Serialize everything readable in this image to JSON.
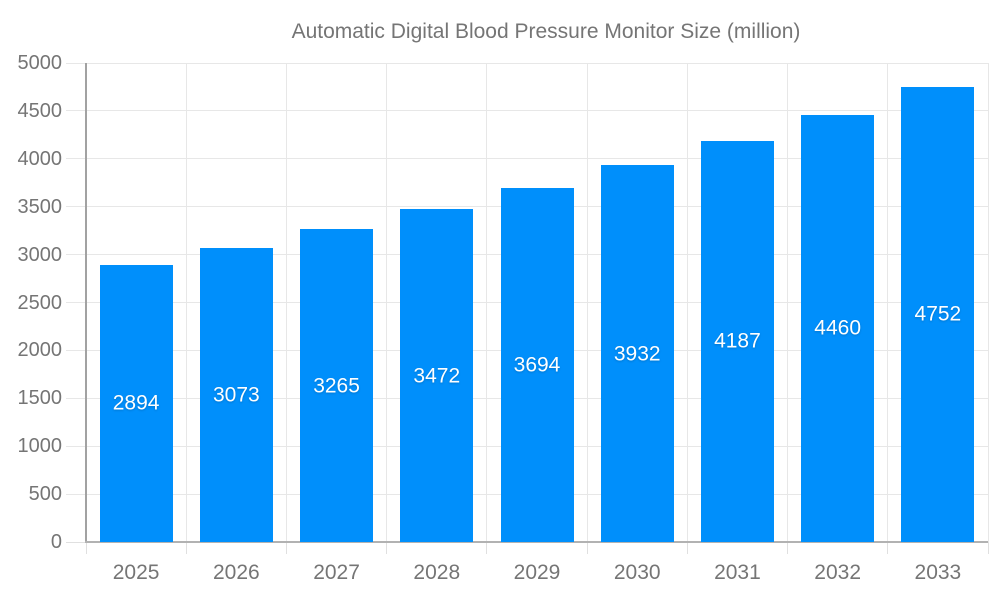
{
  "chart_data": {
    "type": "bar",
    "title": "Automatic Digital Blood Pressure Monitor Size (million)",
    "legend": {
      "label": "Automatic Digital Blood Pressure Monitor Size (million)",
      "position": "top"
    },
    "categories": [
      "2025",
      "2026",
      "2027",
      "2028",
      "2029",
      "2030",
      "2031",
      "2032",
      "2033"
    ],
    "series": [
      {
        "name": "Automatic Digital Blood Pressure Monitor Size (million)",
        "values": [
          2894,
          3073,
          3265,
          3472,
          3694,
          3932,
          4187,
          4460,
          4752
        ]
      }
    ],
    "xlabel": "",
    "ylabel": "",
    "ylim": [
      0,
      5000
    ],
    "ytick_step": 500,
    "ytick_labels": [
      "0",
      "500",
      "1000",
      "1500",
      "2000",
      "2500",
      "3000",
      "3500",
      "4000",
      "4500",
      "5000"
    ],
    "grid": true,
    "bar_labels_visible": true,
    "colors": {
      "bar": "#008FFB",
      "gridline": "#e7e7e7",
      "tick": "#e0e0e0",
      "axis_line": "#a2a2a2",
      "baseline": "#b2b2b2",
      "axis_label": "#757575",
      "bar_label": "#ffffff",
      "background": "#ffffff"
    }
  }
}
